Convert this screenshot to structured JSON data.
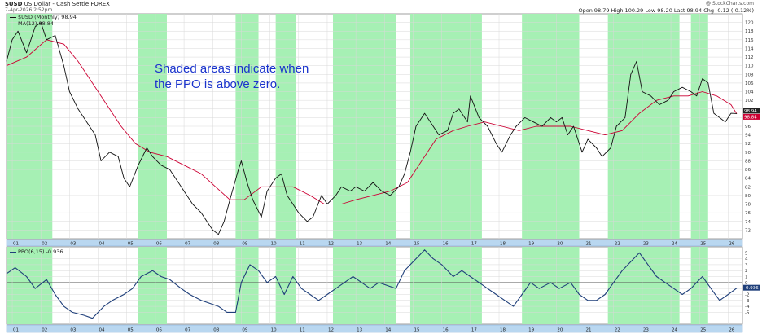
{
  "header": {
    "symbol": "$USD",
    "name": "US Dollar - Cash Settle FOREX",
    "date": "7-Apr-2026 2:52pm",
    "watermark": "@ StockCharts.com",
    "quote": "Open 98.79 High 100.29 Low 98.20 Last 98.94 Chg -0.12 (-0.12%)"
  },
  "annotation": {
    "line1": "Shaded areas indicate when",
    "line2": "the PPO is above zero."
  },
  "legend": {
    "price_label": "$USD (Monthly) 98.94",
    "ma_label": "MA(12) 98.84",
    "ppo_label": "PPO(6,15) -0.936"
  },
  "colors": {
    "shade": "#a6f0b4",
    "price": "#111111",
    "ma": "#cc0033",
    "ppo": "#1f3f7a",
    "axis_bar": "#b9d7f0",
    "grid": "#d9d9d9"
  },
  "chart_data": [
    {
      "type": "line",
      "title": "$USD US Dollar - Cash Settle FOREX",
      "x_label": "Year",
      "x_ticks": [
        "01",
        "02",
        "03",
        "04",
        "05",
        "06",
        "07",
        "08",
        "09",
        "10",
        "11",
        "12",
        "13",
        "14",
        "15",
        "16",
        "17",
        "18",
        "19",
        "20",
        "21",
        "22",
        "23",
        "24",
        "25",
        "26"
      ],
      "ylim": [
        70,
        122
      ],
      "y_ticks": [
        120,
        118,
        116,
        114,
        112,
        110,
        108,
        106,
        104,
        102,
        100,
        98,
        96,
        94,
        92,
        90,
        88,
        86,
        84,
        82,
        80,
        78,
        76,
        74,
        72
      ],
      "shaded_periods": [
        [
          2000.8,
          2002.4
        ],
        [
          2005.4,
          2006.4
        ],
        [
          2008.8,
          2009.6
        ],
        [
          2010.2,
          2010.9
        ],
        [
          2012.2,
          2014.4
        ],
        [
          2014.9,
          2017.4
        ],
        [
          2018.8,
          2020.8
        ],
        [
          2021.8,
          2024.3
        ],
        [
          2024.7,
          2025.3
        ]
      ],
      "price_label_value": 98.94,
      "ma_label_value": 98.84,
      "series": [
        {
          "name": "$USD (Monthly)",
          "x": [
            2000.8,
            2001.0,
            2001.2,
            2001.5,
            2001.8,
            2002.0,
            2002.2,
            2002.5,
            2002.8,
            2003.0,
            2003.3,
            2003.6,
            2003.9,
            2004.1,
            2004.4,
            2004.7,
            2004.9,
            2005.1,
            2005.4,
            2005.7,
            2005.9,
            2006.2,
            2006.5,
            2006.8,
            2007.0,
            2007.3,
            2007.6,
            2007.9,
            2008.0,
            2008.2,
            2008.4,
            2008.6,
            2008.9,
            2009.0,
            2009.2,
            2009.4,
            2009.7,
            2009.9,
            2010.2,
            2010.4,
            2010.6,
            2010.8,
            2011.0,
            2011.3,
            2011.5,
            2011.8,
            2012.0,
            2012.3,
            2012.5,
            2012.8,
            2013.0,
            2013.3,
            2013.6,
            2013.9,
            2014.2,
            2014.5,
            2014.7,
            2014.9,
            2015.1,
            2015.4,
            2015.7,
            2015.9,
            2016.2,
            2016.4,
            2016.6,
            2016.9,
            2017.0,
            2017.3,
            2017.6,
            2017.9,
            2018.1,
            2018.4,
            2018.6,
            2018.9,
            2019.2,
            2019.5,
            2019.8,
            2020.0,
            2020.2,
            2020.4,
            2020.6,
            2020.9,
            2021.1,
            2021.4,
            2021.6,
            2021.9,
            2022.1,
            2022.4,
            2022.6,
            2022.8,
            2023.0,
            2023.3,
            2023.6,
            2023.9,
            2024.1,
            2024.4,
            2024.7,
            2024.9,
            2025.1,
            2025.3,
            2025.5,
            2025.7,
            2025.9,
            2026.1,
            2026.3
          ],
          "values": [
            111,
            116,
            118,
            113,
            119,
            120,
            116,
            117,
            110,
            104,
            100,
            97,
            94,
            88,
            90,
            89,
            84,
            82,
            87,
            91,
            89,
            87,
            86,
            83,
            81,
            78,
            76,
            73,
            72,
            71,
            74,
            79,
            86,
            88,
            83,
            79,
            75,
            81,
            84,
            85,
            80,
            78,
            76,
            74,
            75,
            80,
            78,
            80,
            82,
            81,
            82,
            81,
            83,
            81,
            80,
            82,
            85,
            90,
            96,
            99,
            96,
            94,
            95,
            99,
            100,
            97,
            103,
            98,
            96,
            92,
            90,
            94,
            96,
            98,
            97,
            96,
            98,
            97,
            98,
            94,
            96,
            90,
            93,
            91,
            89,
            91,
            96,
            98,
            108,
            111,
            104,
            103,
            101,
            102,
            104,
            105,
            104,
            103,
            107,
            106,
            99,
            98,
            97,
            99,
            98.94
          ]
        },
        {
          "name": "MA(12)",
          "x": [
            2000.8,
            2001.5,
            2002.2,
            2002.8,
            2003.3,
            2003.8,
            2004.3,
            2004.8,
            2005.3,
            2005.8,
            2006.4,
            2007.0,
            2007.6,
            2008.1,
            2008.6,
            2009.1,
            2009.7,
            2010.3,
            2010.8,
            2011.4,
            2011.9,
            2012.5,
            2013.0,
            2013.6,
            2014.2,
            2014.8,
            2015.3,
            2015.8,
            2016.4,
            2016.9,
            2017.5,
            2018.1,
            2018.7,
            2019.3,
            2019.9,
            2020.5,
            2021.1,
            2021.7,
            2022.3,
            2022.9,
            2023.5,
            2024.1,
            2024.6,
            2025.1,
            2025.6,
            2026.1,
            2026.3
          ],
          "values": [
            110,
            112,
            116,
            115,
            111,
            106,
            101,
            96,
            92,
            90,
            89,
            87,
            85,
            82,
            79,
            79,
            82,
            82,
            82,
            80,
            78,
            78,
            79,
            80,
            81,
            83,
            88,
            93,
            95,
            96,
            97,
            96,
            95,
            96,
            96,
            96,
            95,
            94,
            95,
            99,
            102,
            103,
            103,
            104,
            103,
            101,
            98.84
          ]
        }
      ]
    },
    {
      "type": "line",
      "title": "PPO(6,15)",
      "ylim": [
        -7,
        6
      ],
      "y_ticks": [
        5,
        4,
        3,
        2,
        1,
        0,
        -1,
        -2,
        -3,
        -4,
        -5
      ],
      "last_value": -0.936,
      "series": [
        {
          "name": "PPO(6,15)",
          "x": [
            2000.8,
            2001.1,
            2001.5,
            2001.8,
            2002.2,
            2002.5,
            2002.8,
            2003.1,
            2003.5,
            2003.8,
            2004.2,
            2004.5,
            2004.9,
            2005.2,
            2005.5,
            2005.9,
            2006.2,
            2006.5,
            2006.9,
            2007.2,
            2007.6,
            2007.9,
            2008.2,
            2008.5,
            2008.8,
            2009.0,
            2009.3,
            2009.6,
            2009.9,
            2010.2,
            2010.5,
            2010.8,
            2011.1,
            2011.4,
            2011.7,
            2012.0,
            2012.3,
            2012.6,
            2012.9,
            2013.2,
            2013.5,
            2013.8,
            2014.1,
            2014.4,
            2014.7,
            2014.9,
            2015.1,
            2015.4,
            2015.7,
            2016.0,
            2016.4,
            2016.7,
            2017.0,
            2017.3,
            2017.6,
            2017.9,
            2018.2,
            2018.5,
            2018.8,
            2019.1,
            2019.4,
            2019.8,
            2020.1,
            2020.5,
            2020.8,
            2021.1,
            2021.4,
            2021.7,
            2022.0,
            2022.3,
            2022.6,
            2022.9,
            2023.2,
            2023.5,
            2023.8,
            2024.1,
            2024.4,
            2024.7,
            2024.9,
            2025.1,
            2025.4,
            2025.7,
            2026.0,
            2026.3
          ],
          "values": [
            1.5,
            2.5,
            1,
            -1,
            0.5,
            -2,
            -4,
            -5,
            -5.5,
            -6,
            -4,
            -3,
            -2,
            -1,
            1,
            2,
            1,
            0.5,
            -1,
            -2,
            -3,
            -3.5,
            -4,
            -5,
            -5,
            0,
            3,
            2,
            0,
            1,
            -2,
            1,
            -1,
            -2,
            -3,
            -2,
            -1,
            0,
            1,
            0,
            -1,
            0,
            -0.5,
            -1,
            2,
            3,
            4,
            5.5,
            4,
            3,
            1,
            2,
            1,
            0,
            -1,
            -2,
            -3,
            -4,
            -2,
            0,
            -1,
            0,
            -1,
            0,
            -2,
            -3,
            -3,
            -2,
            0,
            2,
            3.5,
            5,
            3,
            1,
            0,
            -1,
            -2,
            -1,
            0,
            1,
            -1,
            -3,
            -2,
            -0.936
          ]
        }
      ]
    }
  ]
}
